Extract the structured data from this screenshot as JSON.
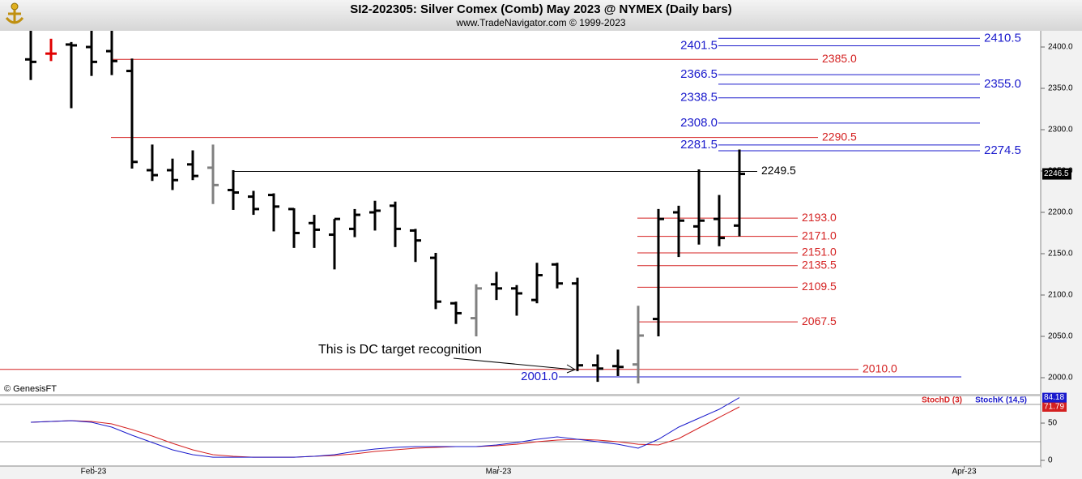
{
  "chart_data": [
    {
      "type": "ohlc",
      "title": "SI2-202305:  Silver Comex (Comb) May 2023 @ NYMEX  (Daily bars)",
      "subtitle": "www.TradeNavigator.com © 1999-2023",
      "credit": "© GenesisFT",
      "annotation": "This is DC target recognition",
      "ylim": [
        1980.4,
        2419.6
      ],
      "yticks": [
        {
          "value": 2000,
          "label": "2000.0"
        },
        {
          "value": 2050,
          "label": "2050.0"
        },
        {
          "value": 2100,
          "label": "2100.0"
        },
        {
          "value": 2150,
          "label": "2150.0"
        },
        {
          "value": 2200,
          "label": "2200.0"
        },
        {
          "value": 2250,
          "label": "2250.0"
        },
        {
          "value": 2300,
          "label": "2300.0"
        },
        {
          "value": 2350,
          "label": "2350.0"
        },
        {
          "value": 2400,
          "label": "2400.0"
        }
      ],
      "xlim": [
        -1.52,
        49.88
      ],
      "open": [
        2385,
        2392,
        2403,
        2400,
        2395,
        2371,
        2251,
        2251,
        2258,
        2254,
        2227,
        2219,
        2221,
        2204,
        2187,
        2173,
        2180,
        2200,
        2208,
        2178,
        2145,
        2090,
        2072,
        2113,
        2108,
        2094,
        2137,
        2114,
        2015,
        2014,
        2016,
        2071,
        2200,
        2183,
        2192,
        2184
      ],
      "high": [
        2425,
        2410,
        2406,
        2425,
        2425,
        2386,
        2282,
        2265,
        2275,
        2282,
        2251,
        2226,
        2223,
        2205,
        2197,
        2192,
        2204,
        2214,
        2213,
        2180,
        2151,
        2092,
        2113,
        2128,
        2112,
        2139,
        2139,
        2121,
        2028,
        2034,
        2087,
        2204,
        2208,
        2252,
        2221,
        2276
      ],
      "low": [
        2360,
        2383,
        2326,
        2365,
        2366,
        2253,
        2238,
        2227,
        2239,
        2210,
        2203,
        2197,
        2177,
        2157,
        2157,
        2131,
        2170,
        2178,
        2158,
        2140,
        2083,
        2065,
        2050,
        2094,
        2075,
        2090,
        2108,
        2008,
        1995,
        2002,
        1993,
        2050,
        2146,
        2161,
        2159,
        2171
      ],
      "close": [
        2382,
        2392,
        2402,
        2382,
        2383,
        2261,
        2245,
        2239,
        2244,
        2233,
        2224,
        2204,
        2207,
        2175,
        2179,
        2192,
        2197,
        2202,
        2180,
        2166,
        2092,
        2078,
        2108,
        2108,
        2102,
        2124,
        2114,
        2015,
        2011,
        2013,
        2051,
        2192,
        2190,
        2190,
        2169,
        2246.5
      ],
      "colors": [
        "#000000",
        "#e00000",
        "#000000",
        "#000000",
        "#000000",
        "#000000",
        "#000000",
        "#000000",
        "#000000",
        "#808080",
        "#000000",
        "#000000",
        "#000000",
        "#000000",
        "#000000",
        "#000000",
        "#000000",
        "#000000",
        "#000000",
        "#000000",
        "#000000",
        "#000000",
        "#808080",
        "#000000",
        "#000000",
        "#000000",
        "#000000",
        "#000000",
        "#000000",
        "#000000",
        "#808080",
        "#000000",
        "#000000",
        "#000000",
        "#000000",
        "#000000"
      ],
      "last_price": 2246.5,
      "levels": [
        {
          "value": 2410.5,
          "label": "2410.5",
          "color": "#1a1acc",
          "side": "right"
        },
        {
          "value": 2401.5,
          "label": "2401.5",
          "color": "#1a1acc",
          "side": "left"
        },
        {
          "value": 2385.0,
          "label": "2385.0",
          "color": "#d42020",
          "side": "right"
        },
        {
          "value": 2366.5,
          "label": "2366.5",
          "color": "#1a1acc",
          "side": "left"
        },
        {
          "value": 2355.0,
          "label": "2355.0",
          "color": "#1a1acc",
          "side": "right"
        },
        {
          "value": 2338.5,
          "label": "2338.5",
          "color": "#1a1acc",
          "side": "left"
        },
        {
          "value": 2308.0,
          "label": "2308.0",
          "color": "#1a1acc",
          "side": "left"
        },
        {
          "value": 2290.5,
          "label": "2290.5",
          "color": "#d42020",
          "side": "right"
        },
        {
          "value": 2281.5,
          "label": "2281.5",
          "color": "#1a1acc",
          "side": "left"
        },
        {
          "value": 2274.5,
          "label": "2274.5",
          "color": "#1a1acc",
          "side": "right"
        },
        {
          "value": 2249.5,
          "label": "2249.5",
          "color": "#000000",
          "side": "right"
        },
        {
          "value": 2193.0,
          "label": "2193.0",
          "color": "#d42020",
          "side": "right"
        },
        {
          "value": 2171.0,
          "label": "2171.0",
          "color": "#d42020",
          "side": "right"
        },
        {
          "value": 2151.0,
          "label": "2151.0",
          "color": "#d42020",
          "side": "right"
        },
        {
          "value": 2135.5,
          "label": "2135.5",
          "color": "#d42020",
          "side": "right"
        },
        {
          "value": 2109.5,
          "label": "2109.5",
          "color": "#d42020",
          "side": "right"
        },
        {
          "value": 2067.5,
          "label": "2067.5",
          "color": "#d42020",
          "side": "right"
        },
        {
          "value": 2010.0,
          "label": "2010.0",
          "color": "#d42020",
          "side": "right"
        },
        {
          "value": 2001.0,
          "label": "2001.0",
          "color": "#1a1acc",
          "side": "left"
        }
      ]
    },
    {
      "type": "line",
      "ylim": [
        -7.6,
        87
      ],
      "yticks": [
        0,
        50
      ],
      "reference_lines": [
        25,
        75
      ],
      "xlim": [
        -1.52,
        49.88
      ],
      "xticks": [
        {
          "value": 3.1,
          "label": "Feb-23"
        },
        {
          "value": 23.1,
          "label": "Mar-23"
        },
        {
          "value": 46.1,
          "label": "Apr-23"
        }
      ],
      "series": [
        {
          "name": "StochD (3)",
          "color": "#d42020",
          "values": [
            51.1,
            52.2,
            53.3,
            52.2,
            48.9,
            41.3,
            32.6,
            22.8,
            14.1,
            7.6,
            5.4,
            4.3,
            4.3,
            4.3,
            5.4,
            6.5,
            8.7,
            12.0,
            14.1,
            16.3,
            17.4,
            18.5,
            18.5,
            19.6,
            21.7,
            25.0,
            27.2,
            28.3,
            27.2,
            25.0,
            21.7,
            20.7,
            29.3,
            43.5,
            57.6,
            71.79
          ]
        },
        {
          "name": "StochK (14,5)",
          "color": "#1a1acc",
          "values": [
            51.1,
            52.2,
            53.3,
            51.1,
            44.6,
            33.7,
            23.9,
            14.1,
            7.6,
            4.3,
            4.3,
            4.3,
            4.3,
            4.3,
            5.4,
            7.6,
            12.0,
            15.2,
            17.4,
            18.5,
            18.5,
            18.5,
            18.5,
            20.7,
            23.9,
            28.3,
            31.5,
            28.3,
            25.0,
            21.7,
            16.3,
            28.3,
            44.6,
            56.5,
            68.5,
            84.18
          ]
        }
      ]
    }
  ]
}
